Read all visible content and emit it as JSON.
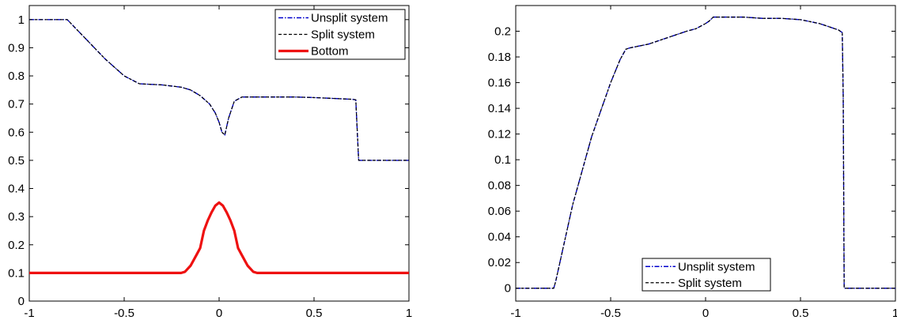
{
  "chart_data": [
    {
      "type": "line",
      "xlim": [
        -1,
        1
      ],
      "ylim": [
        0,
        1.05
      ],
      "x_ticks": [
        -1,
        -0.5,
        0,
        0.5,
        1
      ],
      "x_tick_labels": [
        "-1",
        "-0.5",
        "0",
        "0.5",
        "1"
      ],
      "y_ticks": [
        0,
        0.1,
        0.2,
        0.3,
        0.4,
        0.5,
        0.6,
        0.7,
        0.8,
        0.9,
        1
      ],
      "y_tick_labels": [
        "0",
        "0.1",
        "0.2",
        "0.3",
        "0.4",
        "0.5",
        "0.6",
        "0.7",
        "0.8",
        "0.9",
        "1"
      ],
      "grid": false,
      "legend_position": "top-right",
      "series": [
        {
          "name": "Unsplit system",
          "color": "#0000cc",
          "style": "dash-dot",
          "x": [
            -1,
            -0.8,
            -0.7,
            -0.6,
            -0.5,
            -0.42,
            -0.3,
            -0.2,
            -0.15,
            -0.1,
            -0.05,
            -0.02,
            0.0,
            0.015,
            0.03,
            0.05,
            0.08,
            0.12,
            0.2,
            0.3,
            0.4,
            0.5,
            0.6,
            0.7,
            0.72,
            0.728,
            0.735,
            1.0
          ],
          "y": [
            1.0,
            1.0,
            0.93,
            0.86,
            0.8,
            0.772,
            0.768,
            0.76,
            0.75,
            0.73,
            0.7,
            0.668,
            0.635,
            0.6,
            0.59,
            0.65,
            0.71,
            0.725,
            0.725,
            0.725,
            0.725,
            0.723,
            0.72,
            0.717,
            0.715,
            0.6,
            0.5,
            0.5
          ]
        },
        {
          "name": "Split system",
          "color": "#000000",
          "style": "dashed",
          "x": [
            -1,
            -0.8,
            -0.7,
            -0.6,
            -0.5,
            -0.42,
            -0.3,
            -0.2,
            -0.15,
            -0.1,
            -0.05,
            -0.02,
            0.0,
            0.015,
            0.03,
            0.05,
            0.08,
            0.12,
            0.2,
            0.3,
            0.4,
            0.5,
            0.6,
            0.7,
            0.72,
            0.728,
            0.735,
            1.0
          ],
          "y": [
            1.0,
            1.0,
            0.93,
            0.86,
            0.8,
            0.772,
            0.768,
            0.76,
            0.75,
            0.73,
            0.7,
            0.668,
            0.635,
            0.6,
            0.59,
            0.65,
            0.71,
            0.725,
            0.725,
            0.725,
            0.725,
            0.723,
            0.72,
            0.717,
            0.715,
            0.6,
            0.5,
            0.5
          ]
        },
        {
          "name": "Bottom",
          "color": "#ee1111",
          "style": "solid-thick",
          "x": [
            -1,
            -0.2,
            -0.18,
            -0.15,
            -0.12,
            -0.1,
            -0.08,
            -0.06,
            -0.04,
            -0.02,
            0.0,
            0.02,
            0.04,
            0.06,
            0.08,
            0.1,
            0.12,
            0.15,
            0.18,
            0.2,
            1.0
          ],
          "y": [
            0.1,
            0.1,
            0.104,
            0.126,
            0.163,
            0.188,
            0.25,
            0.286,
            0.315,
            0.339,
            0.35,
            0.339,
            0.315,
            0.286,
            0.25,
            0.188,
            0.163,
            0.126,
            0.104,
            0.1,
            0.1
          ]
        }
      ]
    },
    {
      "type": "line",
      "xlim": [
        -1,
        1
      ],
      "ylim": [
        -0.01,
        0.22
      ],
      "x_ticks": [
        -1,
        -0.5,
        0,
        0.5,
        1
      ],
      "x_tick_labels": [
        "-1",
        "-0.5",
        "0",
        "0.5",
        "1"
      ],
      "y_ticks": [
        0,
        0.02,
        0.04,
        0.06,
        0.08,
        0.1,
        0.12,
        0.14,
        0.16,
        0.18,
        0.2
      ],
      "y_tick_labels": [
        "0",
        "0.02",
        "0.04",
        "0.06",
        "0.08",
        "0.1",
        "0.12",
        "0.14",
        "0.16",
        "0.18",
        "0.2"
      ],
      "grid": false,
      "legend_position": "bottom-center",
      "series": [
        {
          "name": "Unsplit system",
          "color": "#0000cc",
          "style": "dash-dot",
          "x": [
            -1,
            -0.8,
            -0.79,
            -0.7,
            -0.6,
            -0.5,
            -0.45,
            -0.42,
            -0.4,
            -0.3,
            -0.2,
            -0.1,
            -0.05,
            0.0,
            0.02,
            0.04,
            0.1,
            0.2,
            0.3,
            0.4,
            0.5,
            0.6,
            0.7,
            0.72,
            0.725,
            0.73,
            1.0
          ],
          "y": [
            0.0,
            0.0,
            0.005,
            0.065,
            0.118,
            0.16,
            0.178,
            0.186,
            0.187,
            0.19,
            0.195,
            0.2,
            0.202,
            0.206,
            0.208,
            0.211,
            0.211,
            0.211,
            0.21,
            0.21,
            0.209,
            0.206,
            0.201,
            0.199,
            0.15,
            0.0,
            0.0
          ]
        },
        {
          "name": "Split system",
          "color": "#000000",
          "style": "dashed",
          "x": [
            -1,
            -0.8,
            -0.79,
            -0.7,
            -0.6,
            -0.5,
            -0.45,
            -0.42,
            -0.4,
            -0.3,
            -0.2,
            -0.1,
            -0.05,
            0.0,
            0.02,
            0.04,
            0.1,
            0.2,
            0.3,
            0.4,
            0.5,
            0.6,
            0.7,
            0.72,
            0.725,
            0.73,
            1.0
          ],
          "y": [
            0.0,
            0.0,
            0.005,
            0.065,
            0.118,
            0.16,
            0.178,
            0.186,
            0.187,
            0.19,
            0.195,
            0.2,
            0.202,
            0.206,
            0.208,
            0.211,
            0.211,
            0.211,
            0.21,
            0.21,
            0.209,
            0.206,
            0.201,
            0.199,
            0.15,
            0.0,
            0.0
          ]
        }
      ]
    }
  ]
}
